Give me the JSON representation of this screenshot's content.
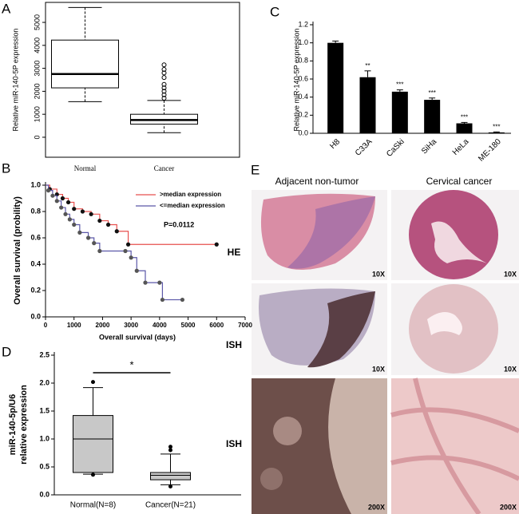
{
  "chart_data": [
    {
      "type": "box",
      "panel": "A",
      "ylabel": "Relative miR-140-5P expression",
      "categories": [
        "Normal",
        "Cancer"
      ],
      "ylim": [
        -870,
        5870
      ],
      "yticks": [
        0,
        1000,
        2000,
        3000,
        4000,
        5000
      ],
      "color": "#ffffff",
      "whisker_style": "dashed",
      "outlier_style": "open",
      "boxes": [
        {
          "min": 1550,
          "q1": 2150,
          "median": 2750,
          "q3": 4230,
          "max": 5650,
          "outliers": []
        },
        {
          "min": 200,
          "q1": 570,
          "median": 750,
          "q3": 1000,
          "max": 1600,
          "outliers": [
            1700,
            1850,
            2000,
            2150,
            2300,
            2600,
            2800,
            2950,
            3150
          ]
        }
      ]
    },
    {
      "type": "step",
      "panel": "B",
      "xlabel": "Overall survival (days)",
      "ylabel": "Overall survival (probility)",
      "xlim": [
        0,
        7000
      ],
      "xticks": [
        0,
        1000,
        2000,
        3000,
        4000,
        5000,
        6000,
        7000
      ],
      "ylim": [
        0,
        1.0
      ],
      "yticks": [
        {
          "value": 0,
          "label": "0.0"
        },
        0.2,
        0.4,
        0.6,
        0.8,
        {
          "value": 1.0,
          "label": "1.0"
        }
      ],
      "annotation": "P=0.0112",
      "legend": "top-right",
      "series": [
        {
          "name": ">median expression",
          "color": "#e8504f",
          "x": [
            0,
            150,
            400,
            600,
            800,
            1000,
            1300,
            1600,
            1900,
            2200,
            2500,
            2900,
            6000
          ],
          "values": [
            1.0,
            0.97,
            0.93,
            0.9,
            0.87,
            0.82,
            0.8,
            0.78,
            0.73,
            0.7,
            0.65,
            0.55,
            0.55
          ]
        },
        {
          "name": "<=median expression",
          "color": "#5b57a8",
          "x": [
            0,
            100,
            250,
            400,
            550,
            700,
            850,
            1000,
            1200,
            1500,
            1700,
            1900,
            2800,
            3000,
            3200,
            3500,
            4000,
            4100,
            4800
          ],
          "values": [
            1.0,
            0.96,
            0.92,
            0.88,
            0.83,
            0.78,
            0.74,
            0.7,
            0.64,
            0.6,
            0.56,
            0.5,
            0.5,
            0.45,
            0.35,
            0.26,
            0.26,
            0.13,
            0.13
          ]
        }
      ]
    },
    {
      "type": "bar",
      "panel": "C",
      "ylabel": "Relative miR-140-5P expression",
      "categories": [
        "H8",
        "C33A",
        "CaSki",
        "SiHa",
        "HeLa",
        "ME-180"
      ],
      "values": [
        1.0,
        0.62,
        0.46,
        0.37,
        0.11,
        0.01
      ],
      "errors": [
        0.02,
        0.07,
        0.02,
        0.02,
        0.01,
        0.005
      ],
      "annotations": [
        null,
        "**",
        "***",
        "***",
        "***",
        "***"
      ],
      "color": "#000000",
      "ylim": [
        0,
        1.2
      ],
      "yticks": [
        {
          "value": 0,
          "label": "0.0"
        },
        0.2,
        0.4,
        0.6,
        0.8,
        {
          "value": 1.0,
          "label": "1.0"
        },
        1.2
      ]
    },
    {
      "type": "box",
      "panel": "D",
      "ylabel": [
        "miR-140-5p/U6",
        "relative expression"
      ],
      "categories": [
        "Normal(N=8)",
        "Cancer(N=21)"
      ],
      "ylim": [
        0,
        2.5
      ],
      "yticks": [
        {
          "value": 0,
          "label": "0.0"
        },
        0.5,
        {
          "value": 1.0,
          "label": "1.0"
        },
        1.5,
        {
          "value": 2.0,
          "label": "2.0"
        },
        2.5
      ],
      "color": "#c8c8c8",
      "whisker_style": "solid",
      "outlier_style": "filled",
      "significance": "*",
      "boxes": [
        {
          "min": 0.37,
          "q1": 0.4,
          "median": 1.0,
          "q3": 1.42,
          "max": 1.92,
          "outliers": [
            2.02,
            0.36
          ]
        },
        {
          "min": 0.18,
          "q1": 0.27,
          "median": 0.35,
          "q3": 0.4,
          "max": 0.73,
          "outliers": [
            0.86,
            0.8,
            0.15
          ]
        }
      ]
    }
  ],
  "panel_e": {
    "label": "E",
    "columns": [
      "Adjacent non-tumor",
      "Cervical cancer"
    ],
    "rows": [
      "HE",
      "ISH",
      "ISH"
    ],
    "magnifications": [
      [
        "10X",
        "10X"
      ],
      [
        "10X",
        "10X"
      ],
      [
        "200X",
        "200X"
      ]
    ]
  }
}
